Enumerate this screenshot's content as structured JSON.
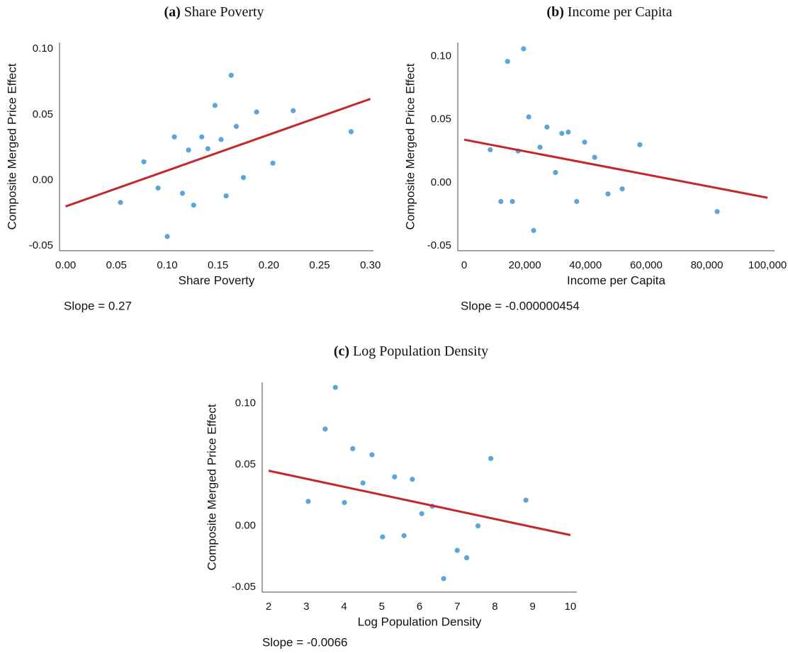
{
  "chart_data": [
    {
      "type": "scatter",
      "label": "(a)",
      "title": "Share Poverty",
      "xlabel": "Share Poverty",
      "ylabel": "Composite Merged Price Effect",
      "note": "Slope = 0.27",
      "color": "#5aa6d8",
      "x": [
        0.054,
        0.077,
        0.091,
        0.1,
        0.107,
        0.115,
        0.121,
        0.126,
        0.134,
        0.14,
        0.147,
        0.153,
        0.158,
        0.163,
        0.168,
        0.175,
        0.188,
        0.204,
        0.224,
        0.281
      ],
      "values": [
        -0.017,
        0.014,
        -0.006,
        -0.043,
        0.033,
        -0.01,
        0.023,
        -0.019,
        0.033,
        0.024,
        0.057,
        0.031,
        -0.012,
        0.08,
        0.041,
        0.002,
        0.052,
        0.013,
        0.053,
        0.037
      ],
      "fit": {
        "x": [
          0,
          0.3
        ],
        "y": [
          -0.02,
          0.062
        ],
        "color": "#c4262e"
      },
      "xlim": [
        -0.006,
        0.303
      ],
      "ylim": [
        -0.0538,
        0.105
      ],
      "xticks": [
        {
          "value": 0,
          "label": "0.00"
        },
        {
          "value": 0.05,
          "label": "0.05"
        },
        {
          "value": 0.1,
          "label": "0.10"
        },
        {
          "value": 0.15,
          "label": "0.15"
        },
        {
          "value": 0.2,
          "label": "0.20"
        },
        {
          "value": 0.25,
          "label": "0.25"
        },
        {
          "value": 0.3,
          "label": "0.30"
        }
      ],
      "yticks": [
        {
          "value": -0.05,
          "label": "-0.05"
        },
        {
          "value": 0,
          "label": "0.00"
        },
        {
          "value": 0.05,
          "label": "0.05"
        },
        {
          "value": 0.1,
          "label": "0.10"
        }
      ]
    },
    {
      "type": "scatter",
      "label": "(b)",
      "title": "Income per Capita",
      "xlabel": "Income per Capita",
      "ylabel": "Composite Merged Price Effect",
      "note": "Slope = -0.000000454",
      "color": "#5aa6d8",
      "x": [
        8600,
        12100,
        14300,
        15900,
        17800,
        19600,
        21300,
        22900,
        25000,
        27300,
        30100,
        32200,
        34300,
        37100,
        39700,
        43000,
        47400,
        52100,
        57900,
        83400
      ],
      "values": [
        0.026,
        -0.015,
        0.096,
        -0.015,
        0.025,
        0.106,
        0.052,
        -0.038,
        0.028,
        0.044,
        0.008,
        0.039,
        0.04,
        -0.015,
        0.032,
        0.02,
        -0.009,
        -0.005,
        0.03,
        -0.023
      ],
      "fit": {
        "x": [
          0,
          100000
        ],
        "y": [
          0.034,
          -0.012
        ],
        "color": "#c4262e"
      },
      "xlim": [
        -2100,
        102300
      ],
      "ylim": [
        -0.054,
        0.111
      ],
      "xticks": [
        0,
        {
          "value": 20000,
          "label": "20,000"
        },
        {
          "value": 40000,
          "label": "40,000"
        },
        {
          "value": 60000,
          "label": "60,000"
        },
        {
          "value": 80000,
          "label": "80,000"
        },
        {
          "value": 100000,
          "label": "100,000"
        }
      ],
      "yticks": [
        {
          "value": -0.05,
          "label": "-0.05"
        },
        {
          "value": 0,
          "label": "0.00"
        },
        {
          "value": 0.05,
          "label": "0.05"
        },
        {
          "value": 0.1,
          "label": "0.10"
        }
      ]
    },
    {
      "type": "scatter",
      "label": "(c)",
      "title": "Log Population Density",
      "xlabel": "Log Population Density",
      "ylabel": "Composite Merged Price Effect",
      "note": "Slope = -0.0066",
      "color": "#5aa6d8",
      "x": [
        3.05,
        3.5,
        3.77,
        4.01,
        4.23,
        4.5,
        4.74,
        5.02,
        5.34,
        5.59,
        5.81,
        6.06,
        6.34,
        6.64,
        7.0,
        7.25,
        7.55,
        7.89,
        8.82
      ],
      "values": [
        0.02,
        0.079,
        0.113,
        0.019,
        0.063,
        0.035,
        0.058,
        -0.009,
        0.04,
        -0.008,
        0.038,
        0.01,
        0.016,
        -0.043,
        -0.02,
        -0.026,
        0.0,
        0.055,
        0.021
      ],
      "fit": {
        "x": [
          2,
          10
        ],
        "y": [
          0.045,
          -0.0075
        ],
        "color": "#c4262e"
      },
      "xlim": [
        1.83,
        10.17
      ],
      "ylim": [
        -0.054,
        0.117
      ],
      "xticks": [
        2,
        3,
        4,
        5,
        6,
        7,
        8,
        9,
        10
      ],
      "yticks": [
        {
          "value": -0.05,
          "label": "-0.05"
        },
        {
          "value": 0,
          "label": "0.00"
        },
        {
          "value": 0.05,
          "label": "0.05"
        },
        {
          "value": 0.1,
          "label": "0.10"
        }
      ]
    }
  ]
}
